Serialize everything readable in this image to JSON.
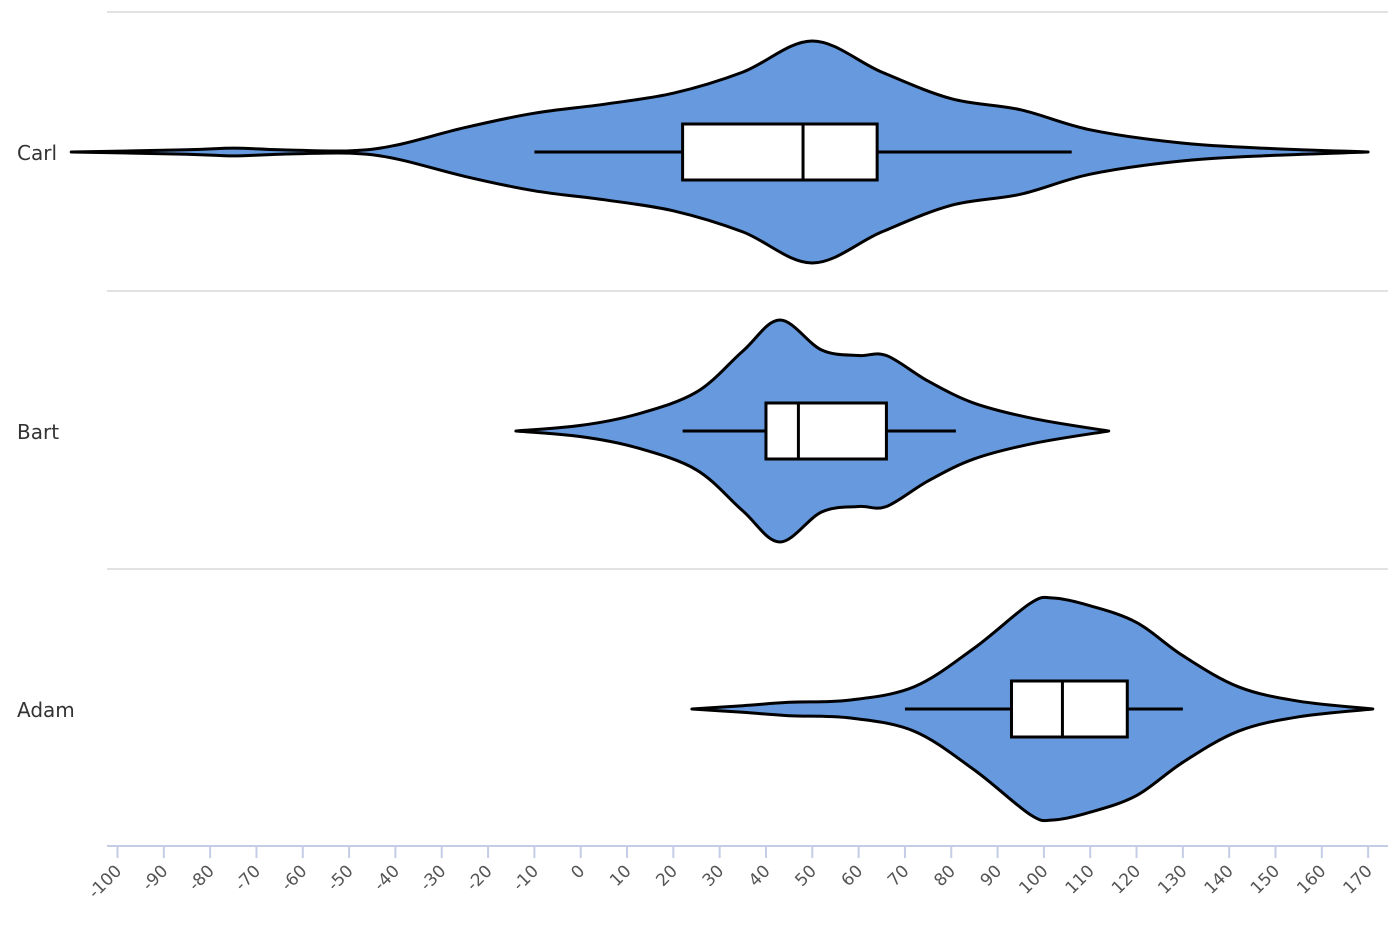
{
  "chart_data": {
    "type": "violin",
    "orientation": "horizontal",
    "categories": [
      "Carl",
      "Bart",
      "Adam"
    ],
    "xlim": [
      -100,
      170
    ],
    "x_ticks": [
      -100,
      -90,
      -80,
      -70,
      -60,
      -50,
      -40,
      -30,
      -20,
      -10,
      0,
      10,
      20,
      30,
      40,
      50,
      60,
      70,
      80,
      90,
      100,
      110,
      120,
      130,
      140,
      150,
      160,
      170
    ],
    "colors": {
      "violin_fill": "#6699dd",
      "outline": "#000000",
      "box_fill": "#ffffff",
      "grid": "#e2e2e2",
      "axis": "#c4cde6"
    },
    "series": [
      {
        "category": "Carl",
        "min": -10,
        "q1": 22,
        "median": 48,
        "q3": 64,
        "max": 106,
        "violin_min": -110,
        "violin_max": 170,
        "density": [
          [
            -110,
            0
          ],
          [
            -85,
            0.02
          ],
          [
            -75,
            0.035
          ],
          [
            -65,
            0.02
          ],
          [
            -50,
            0.01
          ],
          [
            -40,
            0.06
          ],
          [
            -25,
            0.22
          ],
          [
            -10,
            0.35
          ],
          [
            5,
            0.43
          ],
          [
            20,
            0.53
          ],
          [
            35,
            0.72
          ],
          [
            50,
            1
          ],
          [
            65,
            0.72
          ],
          [
            80,
            0.48
          ],
          [
            95,
            0.38
          ],
          [
            110,
            0.2
          ],
          [
            130,
            0.08
          ],
          [
            150,
            0.03
          ],
          [
            170,
            0
          ]
        ]
      },
      {
        "category": "Bart",
        "min": 22,
        "q1": 40,
        "median": 47,
        "q3": 66,
        "max": 81,
        "violin_min": -14,
        "violin_max": 114,
        "density": [
          [
            -14,
            0
          ],
          [
            0,
            0.05
          ],
          [
            12,
            0.15
          ],
          [
            25,
            0.35
          ],
          [
            35,
            0.72
          ],
          [
            43,
            1
          ],
          [
            52,
            0.73
          ],
          [
            60,
            0.68
          ],
          [
            66,
            0.68
          ],
          [
            75,
            0.45
          ],
          [
            85,
            0.25
          ],
          [
            98,
            0.11
          ],
          [
            114,
            0
          ]
        ]
      },
      {
        "category": "Adam",
        "min": 70,
        "q1": 93,
        "median": 104,
        "q3": 118,
        "max": 130,
        "violin_min": 24,
        "violin_max": 171,
        "density": [
          [
            24,
            0
          ],
          [
            35,
            0.03
          ],
          [
            45,
            0.06
          ],
          [
            58,
            0.08
          ],
          [
            72,
            0.2
          ],
          [
            85,
            0.55
          ],
          [
            97,
            0.95
          ],
          [
            102,
            1
          ],
          [
            110,
            0.93
          ],
          [
            120,
            0.78
          ],
          [
            130,
            0.48
          ],
          [
            142,
            0.2
          ],
          [
            155,
            0.07
          ],
          [
            171,
            0
          ]
        ]
      }
    ]
  }
}
